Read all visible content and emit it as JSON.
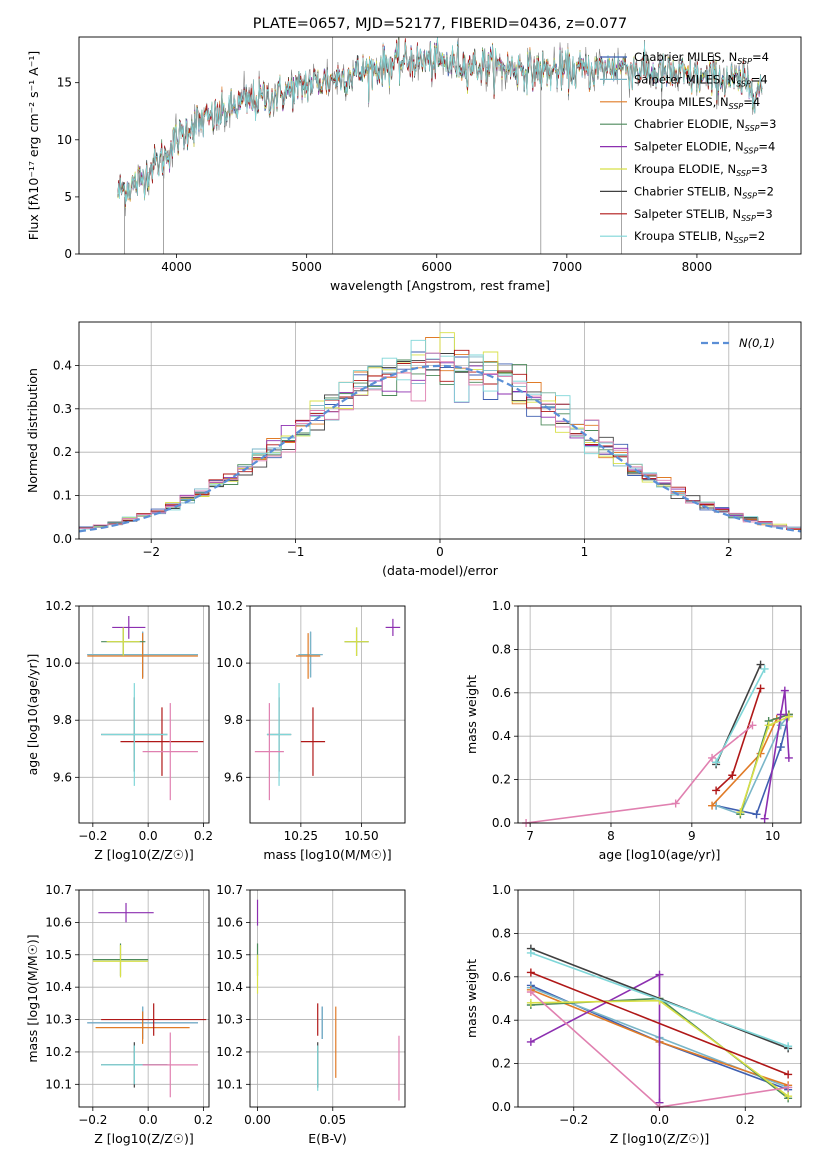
{
  "figure_title": "PLATE=0657, MJD=52177, FIBERID=0436, z=0.077",
  "colors": {
    "Chabrier MILES": "#3f5fb0",
    "Salpeter MILES": "#7ab6c8",
    "Kroupa MILES": "#e07b27",
    "Chabrier ELODIE": "#4d8a5b",
    "Salpeter ELODIE": "#8c2fb0",
    "Kroupa ELODIE": "#d8e048",
    "Chabrier STELIB": "#404040",
    "Salpeter STELIB": "#b01818",
    "Kroupa STELIB": "#7fd6d8",
    "data": "#808080",
    "normal": "#5b8fd6",
    "extra_pink": "#e080b0"
  },
  "chart_data": [
    {
      "id": "spectrum",
      "type": "line",
      "title": "PLATE=0657, MJD=52177, FIBERID=0436, z=0.077",
      "xlabel": "wavelength [Angstrom, rest frame]",
      "ylabel": "Flux [fλ10⁻¹⁷ erg cm⁻² s⁻¹ A⁻¹]",
      "xlim": [
        3250,
        8800
      ],
      "ylim": [
        0,
        19
      ],
      "xticks": [
        4000,
        5000,
        6000,
        7000,
        8000
      ],
      "yticks": [
        0,
        5,
        10,
        15
      ],
      "grid": false,
      "legend_position": "right",
      "legend": [
        "Chabrier MILES, N_SSP=4",
        "Salpeter MILES, N_SSP=4",
        "Kroupa MILES, N_SSP=4",
        "Chabrier ELODIE, N_SSP=3",
        "Salpeter ELODIE, N_SSP=4",
        "Kroupa ELODIE, N_SSP=3",
        "Chabrier STELIB, N_SSP=2",
        "Salpeter STELIB, N_SSP=3",
        "Kroupa STELIB, N_SSP=2"
      ],
      "continuum": [
        [
          3550,
          5.5
        ],
        [
          3700,
          6.2
        ],
        [
          3800,
          7.5
        ],
        [
          3900,
          8.4
        ],
        [
          4000,
          10.0
        ],
        [
          4100,
          11.2
        ],
        [
          4300,
          12.0
        ],
        [
          4500,
          13.2
        ],
        [
          4800,
          14.0
        ],
        [
          5000,
          14.8
        ],
        [
          5200,
          15.3
        ],
        [
          5500,
          16.2
        ],
        [
          5800,
          17.0
        ],
        [
          6000,
          16.8
        ],
        [
          6200,
          16.6
        ],
        [
          6500,
          16.4
        ],
        [
          6800,
          16.0
        ],
        [
          7000,
          16.0
        ],
        [
          7200,
          16.1
        ],
        [
          7400,
          16.5
        ],
        [
          7600,
          16.0
        ],
        [
          7800,
          15.7
        ],
        [
          8000,
          15.4
        ],
        [
          8200,
          15.3
        ],
        [
          8500,
          14.5
        ]
      ]
    },
    {
      "id": "residual_histogram",
      "type": "bar",
      "xlabel": "(data-model)/error",
      "ylabel": "Normed distribution",
      "xlim": [
        -2.5,
        2.5
      ],
      "ylim": [
        0,
        0.5
      ],
      "xticks": [
        -2,
        -1,
        0,
        1,
        2
      ],
      "yticks": [
        0.0,
        0.1,
        0.2,
        0.3,
        0.4
      ],
      "grid": true,
      "legend_position": "top-right",
      "legend": [
        "N(0,1)"
      ],
      "bin_width": 0.1,
      "bin_start": -2.5
    },
    {
      "id": "age_vs_Z",
      "type": "scatter",
      "xlabel": "Z [log10(Z/Z☉)]",
      "ylabel": "age [log10(age/yr)]",
      "xlim": [
        -0.25,
        0.22
      ],
      "ylim": [
        9.44,
        10.2
      ],
      "xticks": [
        -0.2,
        0.0,
        0.2
      ],
      "yticks": [
        9.6,
        9.8,
        10.0,
        10.2
      ],
      "grid": true,
      "points": [
        {
          "model": "Chabrier MILES",
          "x": -0.02,
          "y": 10.03,
          "xerr": 0.2,
          "yerr": 0.08
        },
        {
          "model": "Salpeter MILES",
          "x": -0.02,
          "y": 10.03,
          "xerr": 0.2,
          "yerr": 0.08
        },
        {
          "model": "Kroupa MILES",
          "x": -0.02,
          "y": 10.025,
          "xerr": 0.2,
          "yerr": 0.08
        },
        {
          "model": "Chabrier ELODIE",
          "x": -0.09,
          "y": 10.075,
          "xerr": 0.08,
          "yerr": 0.05
        },
        {
          "model": "Salpeter ELODIE",
          "x": -0.07,
          "y": 10.125,
          "xerr": 0.06,
          "yerr": 0.04
        },
        {
          "model": "Kroupa ELODIE",
          "x": -0.09,
          "y": 10.075,
          "xerr": 0.06,
          "yerr": 0.05
        },
        {
          "model": "Chabrier STELIB",
          "x": -0.05,
          "y": 9.75,
          "xerr": 0.12,
          "yerr": 0.13
        },
        {
          "model": "Salpeter STELIB",
          "x": 0.05,
          "y": 9.725,
          "xerr": 0.15,
          "yerr": 0.12
        },
        {
          "model": "Kroupa STELIB",
          "x": -0.05,
          "y": 9.75,
          "xerr": 0.12,
          "yerr": 0.18
        },
        {
          "model": "extra_pink",
          "x": 0.08,
          "y": 9.69,
          "xerr": 0.1,
          "yerr": 0.17
        }
      ]
    },
    {
      "id": "age_vs_mass",
      "type": "scatter",
      "xlabel": "mass [log10(M/M☉)]",
      "ylabel": "",
      "xlim": [
        10.04,
        10.68
      ],
      "ylim": [
        9.44,
        10.2
      ],
      "xticks": [
        10.25,
        10.5
      ],
      "yticks": [
        9.6,
        9.8,
        10.0,
        10.2
      ],
      "grid": true,
      "points": [
        {
          "model": "Chabrier MILES",
          "x": 10.29,
          "y": 10.03,
          "xerr": 0.05,
          "yerr": 0.08
        },
        {
          "model": "Salpeter MILES",
          "x": 10.29,
          "y": 10.03,
          "xerr": 0.05,
          "yerr": 0.08
        },
        {
          "model": "Kroupa MILES",
          "x": 10.28,
          "y": 10.025,
          "xerr": 0.05,
          "yerr": 0.08
        },
        {
          "model": "Chabrier ELODIE",
          "x": 10.48,
          "y": 10.075,
          "xerr": 0.05,
          "yerr": 0.05
        },
        {
          "model": "Salpeter ELODIE",
          "x": 10.63,
          "y": 10.125,
          "xerr": 0.03,
          "yerr": 0.03
        },
        {
          "model": "Kroupa ELODIE",
          "x": 10.48,
          "y": 10.075,
          "xerr": 0.05,
          "yerr": 0.05
        },
        {
          "model": "Chabrier STELIB",
          "x": 10.16,
          "y": 9.75,
          "xerr": 0.05,
          "yerr": 0.13
        },
        {
          "model": "Salpeter STELIB",
          "x": 10.3,
          "y": 9.725,
          "xerr": 0.05,
          "yerr": 0.12
        },
        {
          "model": "Kroupa STELIB",
          "x": 10.16,
          "y": 9.75,
          "xerr": 0.05,
          "yerr": 0.18
        },
        {
          "model": "extra_pink",
          "x": 10.12,
          "y": 9.69,
          "xerr": 0.06,
          "yerr": 0.17
        }
      ]
    },
    {
      "id": "weight_vs_age",
      "type": "line",
      "xlabel": "age [log10(age/yr)]",
      "ylabel": "mass weight",
      "xlim": [
        6.85,
        10.35
      ],
      "ylim": [
        0,
        1
      ],
      "xticks": [
        7,
        8,
        9,
        10
      ],
      "yticks": [
        0.0,
        0.2,
        0.4,
        0.6,
        0.8,
        1.0
      ],
      "grid": true,
      "series": [
        {
          "model": "Chabrier MILES",
          "x": [
            9.3,
            9.8,
            10.1,
            10.2
          ],
          "y": [
            0.08,
            0.04,
            0.35,
            0.5
          ]
        },
        {
          "model": "Salpeter MILES",
          "x": [
            9.3,
            9.6,
            10.1,
            10.2
          ],
          "y": [
            0.08,
            0.04,
            0.45,
            0.5
          ]
        },
        {
          "model": "Kroupa MILES",
          "x": [
            9.25,
            9.85,
            10.05,
            10.2
          ],
          "y": [
            0.08,
            0.32,
            0.48,
            0.5
          ]
        },
        {
          "model": "Chabrier ELODIE",
          "x": [
            9.6,
            9.95,
            10.2
          ],
          "y": [
            0.04,
            0.47,
            0.5
          ]
        },
        {
          "model": "Salpeter ELODIE",
          "x": [
            9.9,
            10.1,
            10.15,
            10.2
          ],
          "y": [
            0.02,
            0.5,
            0.61,
            0.3
          ]
        },
        {
          "model": "Kroupa ELODIE",
          "x": [
            9.6,
            9.95,
            10.2
          ],
          "y": [
            0.05,
            0.45,
            0.49
          ]
        },
        {
          "model": "Chabrier STELIB",
          "x": [
            9.3,
            9.85
          ],
          "y": [
            0.27,
            0.73
          ]
        },
        {
          "model": "Salpeter STELIB",
          "x": [
            9.3,
            9.5,
            9.85
          ],
          "y": [
            0.15,
            0.22,
            0.62
          ]
        },
        {
          "model": "Kroupa STELIB",
          "x": [
            9.3,
            9.9
          ],
          "y": [
            0.28,
            0.71
          ]
        },
        {
          "model": "extra_pink",
          "x": [
            6.95,
            8.8,
            9.25,
            9.75
          ],
          "y": [
            0.0,
            0.09,
            0.3,
            0.45
          ]
        }
      ]
    },
    {
      "id": "mass_vs_Z",
      "type": "scatter",
      "xlabel": "Z [log10(Z/Z☉)]",
      "ylabel": "mass [log10(M/M☉)]",
      "xlim": [
        -0.25,
        0.22
      ],
      "ylim": [
        10.03,
        10.7
      ],
      "xticks": [
        -0.2,
        0.0,
        0.2
      ],
      "yticks": [
        10.1,
        10.2,
        10.3,
        10.4,
        10.5,
        10.6,
        10.7
      ],
      "grid": true,
      "points": [
        {
          "model": "Chabrier MILES",
          "x": -0.02,
          "y": 10.29,
          "xerr": 0.2,
          "yerr": 0.05
        },
        {
          "model": "Salpeter MILES",
          "x": -0.02,
          "y": 10.29,
          "xerr": 0.2,
          "yerr": 0.05
        },
        {
          "model": "Kroupa MILES",
          "x": -0.02,
          "y": 10.275,
          "xerr": 0.17,
          "yerr": 0.05
        },
        {
          "model": "Chabrier ELODIE",
          "x": -0.1,
          "y": 10.485,
          "xerr": 0.1,
          "yerr": 0.05
        },
        {
          "model": "Salpeter ELODIE",
          "x": -0.08,
          "y": 10.63,
          "xerr": 0.1,
          "yerr": 0.03
        },
        {
          "model": "Kroupa ELODIE",
          "x": -0.1,
          "y": 10.48,
          "xerr": 0.1,
          "yerr": 0.05
        },
        {
          "model": "Chabrier STELIB",
          "x": -0.05,
          "y": 10.16,
          "xerr": 0.12,
          "yerr": 0.07
        },
        {
          "model": "Salpeter STELIB",
          "x": 0.02,
          "y": 10.3,
          "xerr": 0.19,
          "yerr": 0.05
        },
        {
          "model": "Kroupa STELIB",
          "x": -0.05,
          "y": 10.16,
          "xerr": 0.12,
          "yerr": 0.06
        },
        {
          "model": "extra_pink",
          "x": 0.08,
          "y": 10.16,
          "xerr": 0.1,
          "yerr": 0.1
        }
      ]
    },
    {
      "id": "mass_vs_ebv",
      "type": "scatter",
      "xlabel": "E(B-V)",
      "ylabel": "",
      "xlim": [
        -0.005,
        0.098
      ],
      "ylim": [
        10.03,
        10.7
      ],
      "xticks": [
        0.0,
        0.05
      ],
      "yticks": [
        10.1,
        10.2,
        10.3,
        10.4,
        10.5,
        10.6,
        10.7
      ],
      "grid": true,
      "points": [
        {
          "model": "Chabrier MILES",
          "x": 0.043,
          "y": 10.29,
          "xerr": 0,
          "yerr": 0.05
        },
        {
          "model": "Salpeter MILES",
          "x": 0.043,
          "y": 10.29,
          "xerr": 0,
          "yerr": 0.05
        },
        {
          "model": "Kroupa MILES",
          "x": 0.052,
          "y": 10.23,
          "xerr": 0,
          "yerr": 0.11
        },
        {
          "model": "Chabrier ELODIE",
          "x": 0.0,
          "y": 10.485,
          "xerr": 0,
          "yerr": 0.05
        },
        {
          "model": "Salpeter ELODIE",
          "x": 0.0,
          "y": 10.63,
          "xerr": 0,
          "yerr": 0.04
        },
        {
          "model": "Kroupa ELODIE",
          "x": 0.0,
          "y": 10.44,
          "xerr": 0,
          "yerr": 0.06
        },
        {
          "model": "Chabrier STELIB",
          "x": 0.04,
          "y": 10.16,
          "xerr": 0,
          "yerr": 0.07
        },
        {
          "model": "Salpeter STELIB",
          "x": 0.04,
          "y": 10.3,
          "xerr": 0,
          "yerr": 0.05
        },
        {
          "model": "Kroupa STELIB",
          "x": 0.04,
          "y": 10.15,
          "xerr": 0,
          "yerr": 0.07
        },
        {
          "model": "extra_pink",
          "x": 0.094,
          "y": 10.15,
          "xerr": 0,
          "yerr": 0.1
        }
      ]
    },
    {
      "id": "weight_vs_Z",
      "type": "line",
      "xlabel": "Z [log10(Z/Z☉)]",
      "ylabel": "mass weight",
      "xlim": [
        -0.33,
        0.33
      ],
      "ylim": [
        0,
        1
      ],
      "xticks": [
        -0.2,
        0.0,
        0.2
      ],
      "yticks": [
        0.0,
        0.2,
        0.4,
        0.6,
        0.8,
        1.0
      ],
      "grid": true,
      "series": [
        {
          "model": "Chabrier MILES",
          "x": [
            -0.3,
            0.0,
            0.3
          ],
          "y": [
            0.56,
            0.3,
            0.08
          ]
        },
        {
          "model": "Salpeter MILES",
          "x": [
            -0.3,
            0.0,
            0.3
          ],
          "y": [
            0.55,
            0.32,
            0.09
          ]
        },
        {
          "model": "Kroupa MILES",
          "x": [
            -0.3,
            0.0,
            0.3
          ],
          "y": [
            0.54,
            0.3,
            0.1
          ]
        },
        {
          "model": "Chabrier ELODIE",
          "x": [
            -0.3,
            0.0,
            0.3
          ],
          "y": [
            0.47,
            0.5,
            0.04
          ]
        },
        {
          "model": "Salpeter ELODIE",
          "x": [
            -0.3,
            0.0,
            0.0
          ],
          "y": [
            0.3,
            0.61,
            0.02
          ]
        },
        {
          "model": "Kroupa ELODIE",
          "x": [
            -0.3,
            0.0,
            0.3
          ],
          "y": [
            0.48,
            0.49,
            0.05
          ]
        },
        {
          "model": "Chabrier STELIB",
          "x": [
            -0.3,
            0.3
          ],
          "y": [
            0.73,
            0.27
          ]
        },
        {
          "model": "Salpeter STELIB",
          "x": [
            -0.3,
            0.3
          ],
          "y": [
            0.62,
            0.15
          ]
        },
        {
          "model": "Kroupa STELIB",
          "x": [
            -0.3,
            0.3
          ],
          "y": [
            0.71,
            0.28
          ]
        },
        {
          "model": "extra_pink",
          "x": [
            -0.3,
            0.0,
            0.3
          ],
          "y": [
            0.53,
            0.0,
            0.09
          ]
        }
      ]
    }
  ]
}
